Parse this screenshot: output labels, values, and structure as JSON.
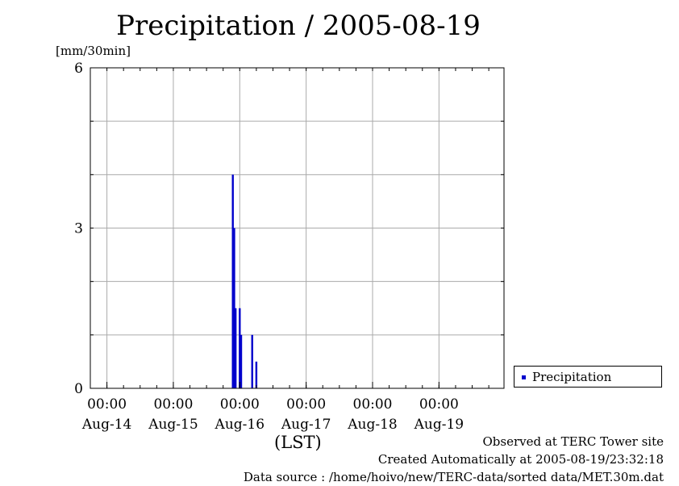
{
  "chart_data": {
    "type": "bar",
    "title": "Precipitation / 2005-08-19",
    "ylabel": "[mm/30min]",
    "xlabel": "(LST)",
    "ylim": [
      0,
      6
    ],
    "yticks": [
      0,
      3,
      6
    ],
    "xlim": [
      "2005-08-13T18:00",
      "2005-08-19T23:30"
    ],
    "x_major_ticks": [
      {
        "time": "2005-08-14T00:00",
        "time_label": "00:00",
        "date_label": "Aug-14"
      },
      {
        "time": "2005-08-15T00:00",
        "time_label": "00:00",
        "date_label": "Aug-15"
      },
      {
        "time": "2005-08-16T00:00",
        "time_label": "00:00",
        "date_label": "Aug-16"
      },
      {
        "time": "2005-08-17T00:00",
        "time_label": "00:00",
        "date_label": "Aug-17"
      },
      {
        "time": "2005-08-18T00:00",
        "time_label": "00:00",
        "date_label": "Aug-18"
      },
      {
        "time": "2005-08-19T00:00",
        "time_label": "00:00",
        "date_label": "Aug-19"
      }
    ],
    "grid": true,
    "legend_position": "right",
    "series": [
      {
        "name": "Precipitation",
        "color": "#0000cc",
        "points": [
          {
            "x": "2005-08-15T21:30",
            "y": 4.0
          },
          {
            "x": "2005-08-15T22:00",
            "y": 3.0
          },
          {
            "x": "2005-08-15T22:30",
            "y": 1.5
          },
          {
            "x": "2005-08-16T00:00",
            "y": 1.5
          },
          {
            "x": "2005-08-16T00:30",
            "y": 1.0
          },
          {
            "x": "2005-08-16T04:30",
            "y": 1.0
          },
          {
            "x": "2005-08-16T06:00",
            "y": 0.5
          }
        ]
      }
    ]
  },
  "footer": {
    "observed": "Observed at TERC Tower site",
    "created": "Created Automatically at 2005-08-19/23:32:18",
    "source": "Data source : /home/hoivo/new/TERC-data/sorted  data/MET.30m.dat"
  }
}
